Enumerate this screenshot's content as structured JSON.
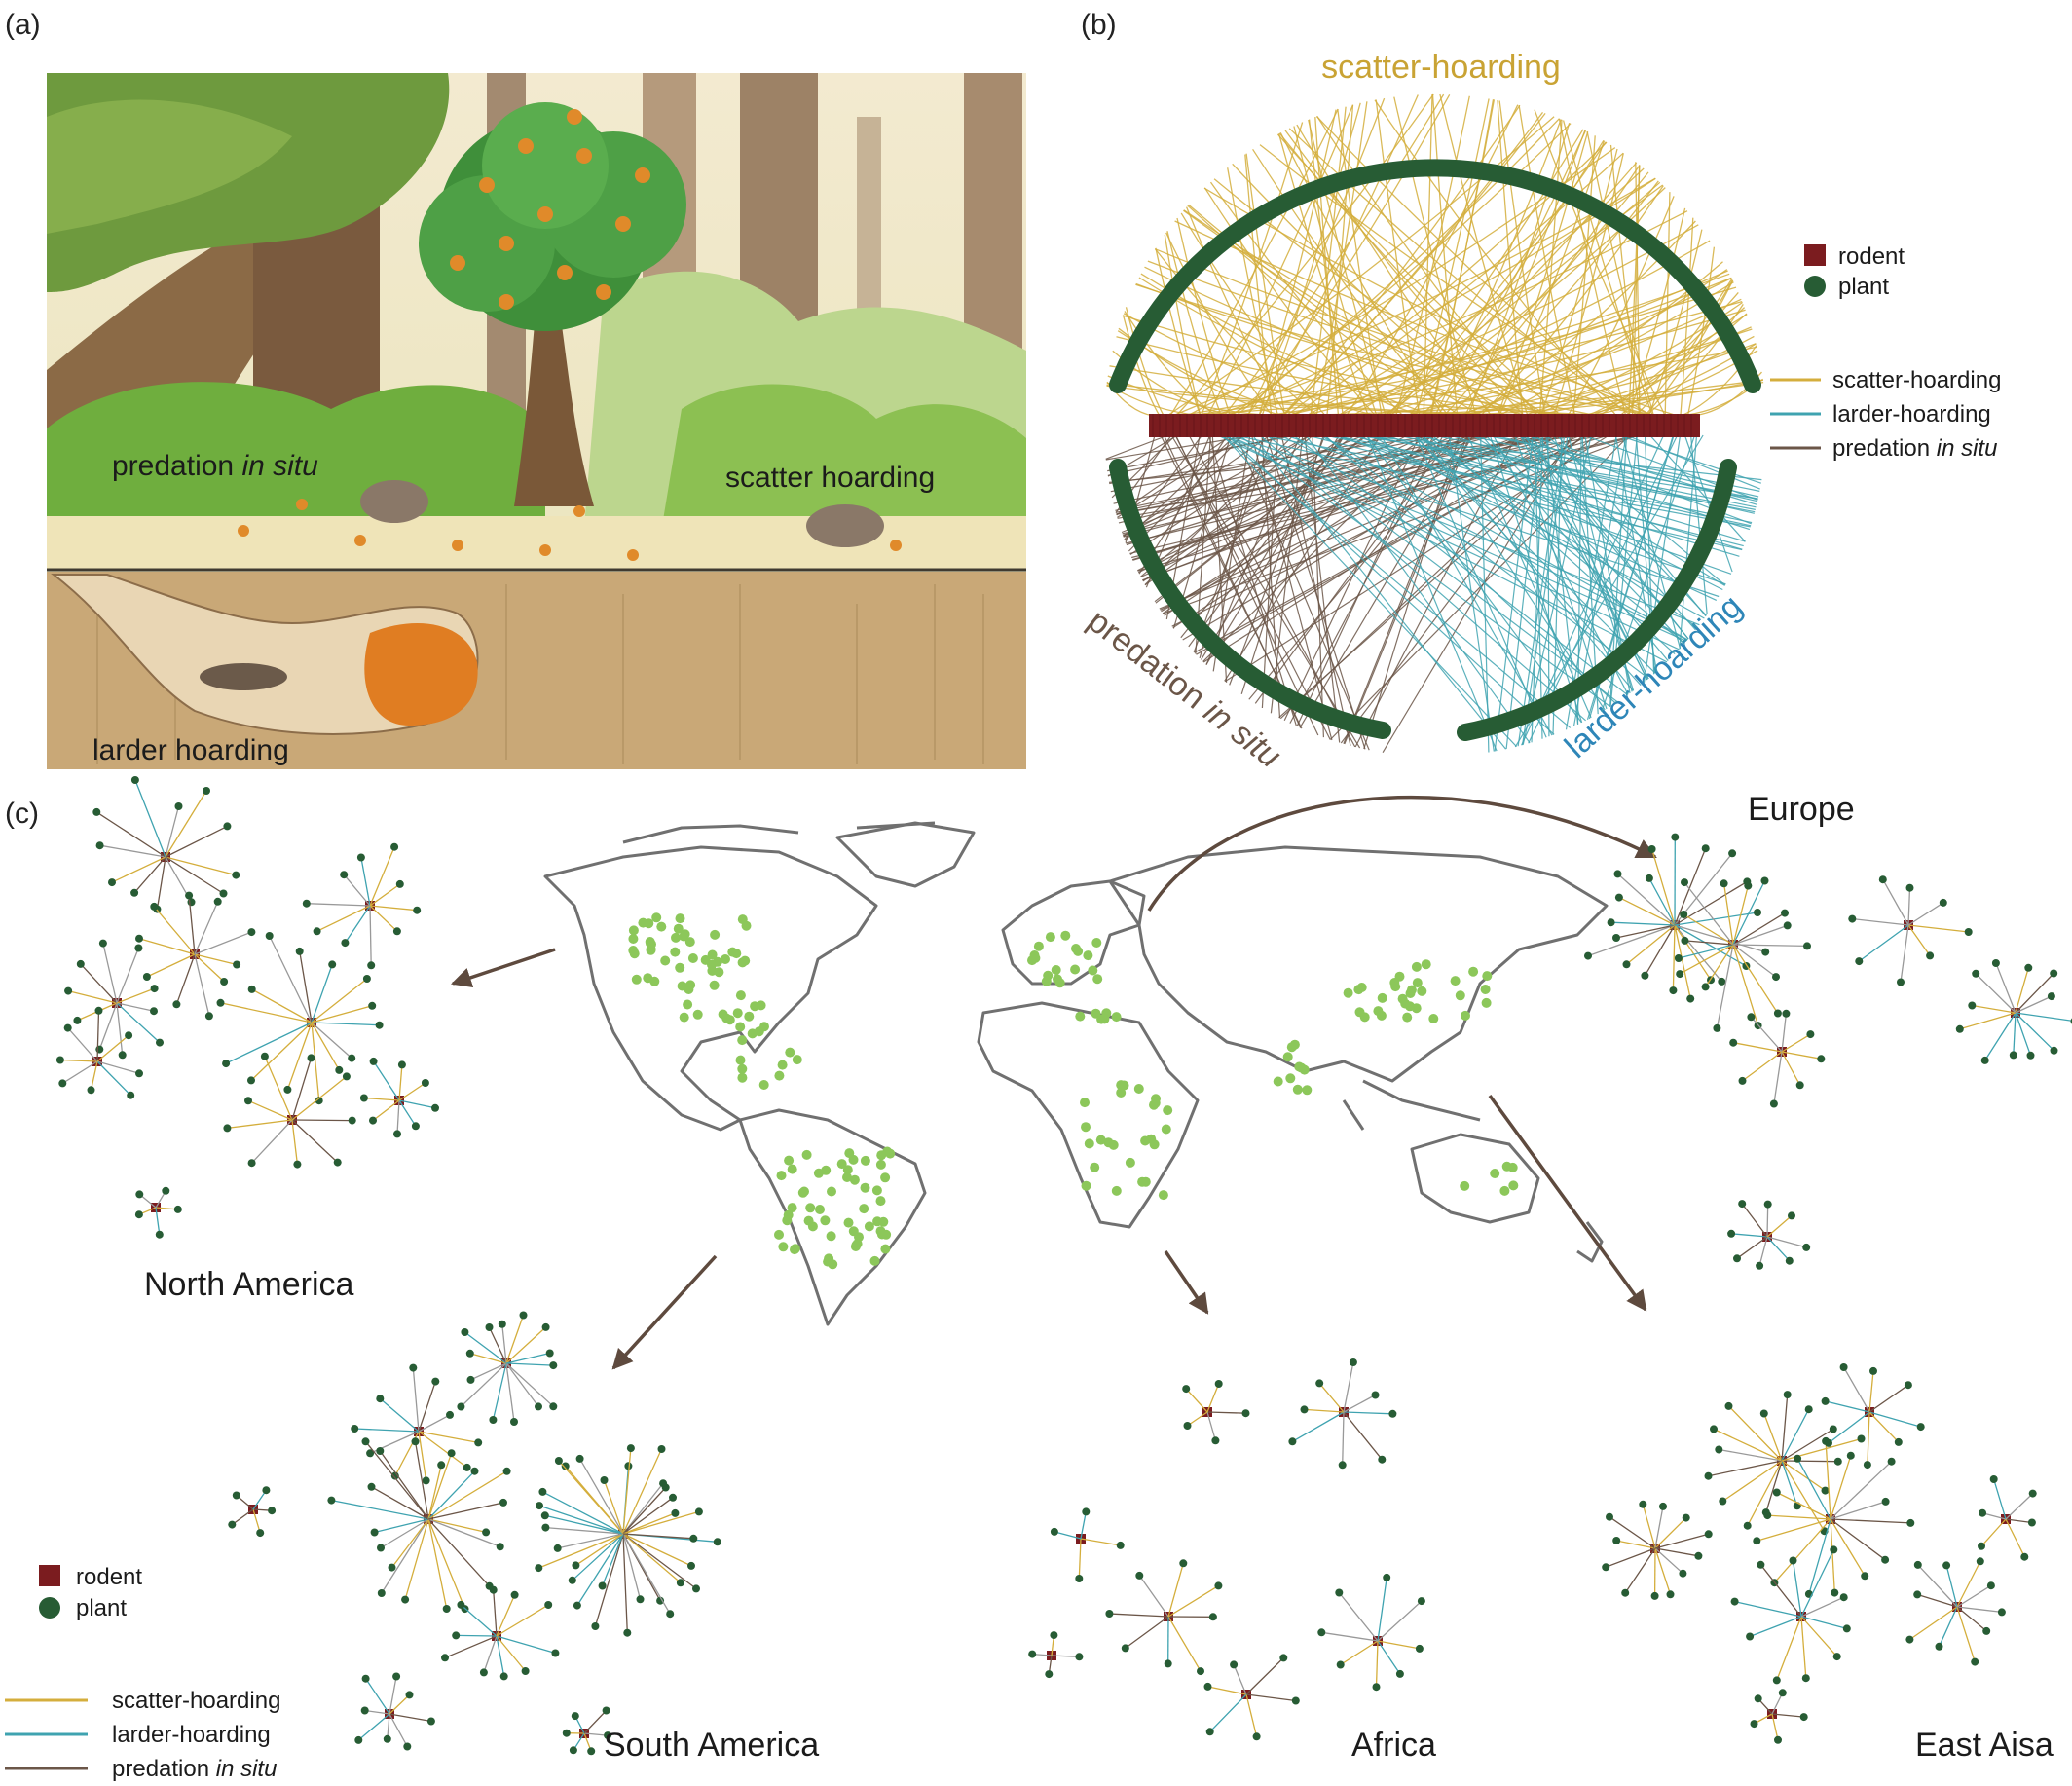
{
  "panel_a": {
    "label": "(a)",
    "captions": {
      "predation": "predation ",
      "predation_italic": "in situ",
      "scatter": "scatter hoarding",
      "larder": "larder hoarding"
    }
  },
  "panel_b": {
    "label": "(b)",
    "arc_titles": {
      "scatter": "scatter-hoarding",
      "predation": "predation ",
      "predation_italic": "in situ",
      "larder": "larder-hoarding"
    },
    "legend_nodes": {
      "rodent": "rodent",
      "plant": "plant"
    },
    "legend_links": {
      "scatter": "scatter-hoarding",
      "larder": "larder-hoarding",
      "predation": "predation ",
      "predation_italic": "in situ"
    }
  },
  "panel_c": {
    "label": "(c)",
    "regions": {
      "north_america": "North America",
      "europe": "Europe",
      "south_america": "South America",
      "africa": "Africa",
      "east_asia": "East Aisa"
    },
    "legend_nodes": {
      "rodent": "rodent",
      "plant": "plant"
    },
    "legend_links": {
      "scatter": "scatter-hoarding",
      "larder": "larder-hoarding",
      "predation": "predation ",
      "predation_italic": "in situ"
    }
  },
  "colors": {
    "scatter": "#d4ae3c",
    "larder": "#3fa3b0",
    "predation": "#6b5648",
    "rodent": "#7b1c1f",
    "plant": "#275c34",
    "site": "#8cc75a",
    "map_outline": "#707070",
    "arrow": "#5e4a3e",
    "larder_title": "#2e86b8",
    "scatter_title": "#c9a334",
    "predation_title": "#6b5648"
  },
  "icons": {
    "rodent": "square",
    "plant": "circle"
  }
}
